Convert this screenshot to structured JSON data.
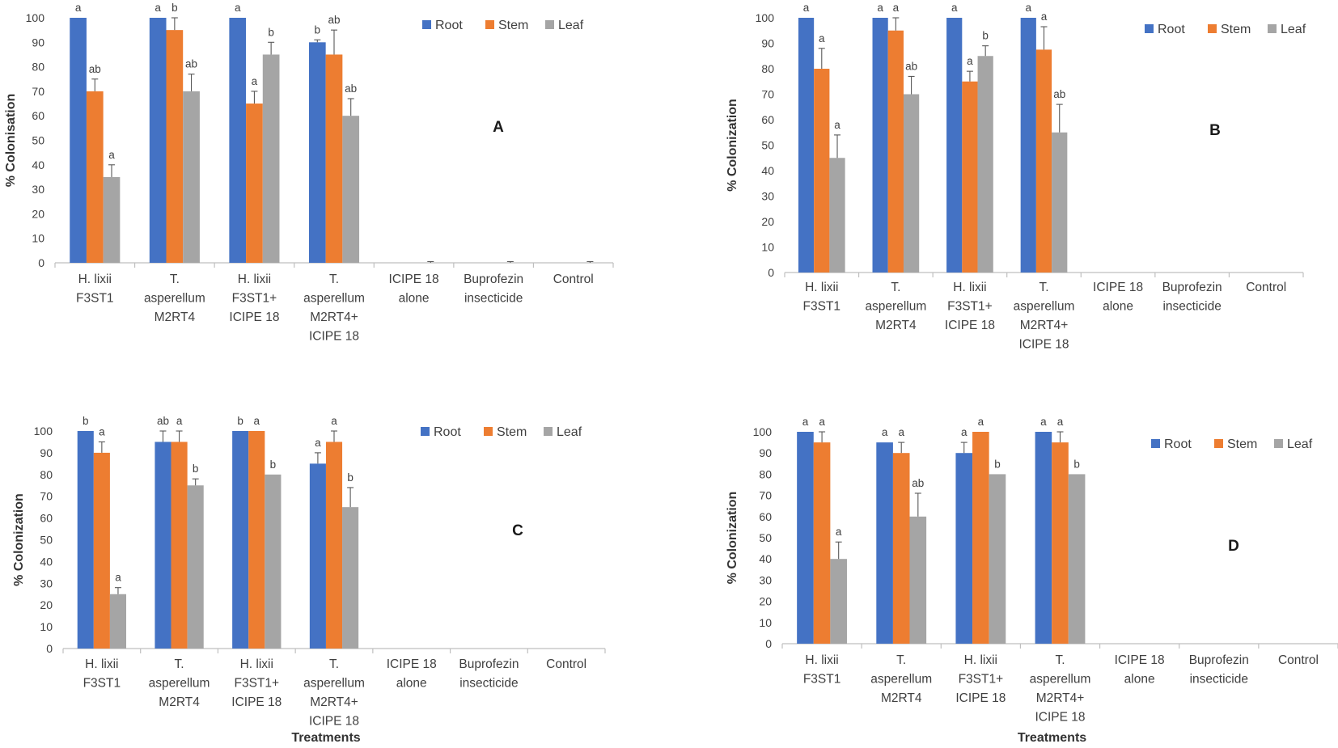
{
  "colors": {
    "root": "#4472C4",
    "stem": "#ED7D31",
    "leaf": "#A5A5A5",
    "axis": "#BFBFBF",
    "err": "#595959"
  },
  "chart_data": [
    {
      "panel": "A",
      "type": "bar",
      "ylabel": "% Colonisation",
      "xlabel": "",
      "ylim": [
        0,
        100
      ],
      "yticks": [
        0,
        10,
        20,
        30,
        40,
        50,
        60,
        70,
        80,
        90,
        100
      ],
      "legend": "top-right",
      "categories": [
        [
          "H. lixii",
          "F3ST1"
        ],
        [
          "T.",
          "asperellum",
          "M2RT4"
        ],
        [
          "H. lixii",
          "F3ST1+",
          "ICIPE 18"
        ],
        [
          "T.",
          "asperellum",
          "M2RT4+",
          "ICIPE 18"
        ],
        [
          "ICIPE 18",
          "alone"
        ],
        [
          "Buprofezin",
          "insecticide"
        ],
        [
          "Control"
        ]
      ],
      "series": [
        {
          "name": "Root",
          "values": [
            100,
            100,
            100,
            90,
            0,
            0,
            0
          ],
          "errors": [
            0,
            0,
            0,
            1,
            0,
            0,
            0
          ],
          "labels": [
            "a",
            "a",
            "a",
            "b",
            "",
            "",
            ""
          ]
        },
        {
          "name": "Stem",
          "values": [
            70,
            95,
            65,
            85,
            0,
            0,
            0
          ],
          "errors": [
            5,
            5,
            5,
            10,
            0,
            0,
            0
          ],
          "labels": [
            "ab",
            "b",
            "a",
            "ab",
            "",
            "",
            ""
          ]
        },
        {
          "name": "Leaf",
          "values": [
            35,
            70,
            85,
            60,
            0,
            0,
            0
          ],
          "errors": [
            5,
            7,
            5,
            7,
            0.5,
            0.5,
            0.5
          ],
          "labels": [
            "a",
            "ab",
            "b",
            "ab",
            "",
            "",
            ""
          ]
        }
      ]
    },
    {
      "panel": "B",
      "type": "bar",
      "ylabel": "% Colonization",
      "xlabel": "",
      "ylim": [
        0,
        100
      ],
      "yticks": [
        0,
        10,
        20,
        30,
        40,
        50,
        60,
        70,
        80,
        90,
        100
      ],
      "legend": "top-right",
      "categories": [
        [
          "H. lixii",
          "F3ST1"
        ],
        [
          "T.",
          "asperellum",
          "M2RT4"
        ],
        [
          "H. lixii",
          "F3ST1+",
          "ICIPE 18"
        ],
        [
          "T.",
          "asperellum",
          "M2RT4+",
          "ICIPE 18"
        ],
        [
          "ICIPE 18",
          "alone"
        ],
        [
          "Buprofezin",
          "insecticide"
        ],
        [
          "Control"
        ]
      ],
      "series": [
        {
          "name": "Root",
          "values": [
            100,
            100,
            100,
            100,
            0,
            0,
            0
          ],
          "errors": [
            0,
            0,
            0,
            0,
            0,
            0,
            0
          ],
          "labels": [
            "a",
            "a",
            "a",
            "a",
            "",
            "",
            ""
          ]
        },
        {
          "name": "Stem",
          "values": [
            80,
            95,
            75,
            87.5,
            0,
            0,
            0
          ],
          "errors": [
            8,
            5,
            4,
            9,
            0,
            0,
            0
          ],
          "labels": [
            "a",
            "a",
            "a",
            "a",
            "",
            "",
            ""
          ]
        },
        {
          "name": "Leaf",
          "values": [
            45,
            70,
            85,
            55,
            0,
            0,
            0
          ],
          "errors": [
            9,
            7,
            4,
            11,
            0,
            0,
            0
          ],
          "labels": [
            "a",
            "ab",
            "b",
            "ab",
            "",
            "",
            ""
          ]
        }
      ]
    },
    {
      "panel": "C",
      "type": "bar",
      "ylabel": "% Colonization",
      "xlabel": "Treatments",
      "ylim": [
        0,
        100
      ],
      "yticks": [
        0,
        10,
        20,
        30,
        40,
        50,
        60,
        70,
        80,
        90,
        100
      ],
      "legend": "top-right",
      "categories": [
        [
          "H.  lixii",
          "F3ST1"
        ],
        [
          "T.",
          "asperellum",
          "M2RT4"
        ],
        [
          "H. lixii",
          "F3ST1+",
          "ICIPE 18"
        ],
        [
          "T.",
          "asperellum",
          "M2RT4+",
          "ICIPE 18"
        ],
        [
          "ICIPE 18",
          "alone"
        ],
        [
          "Buprofezin",
          "insecticide"
        ],
        [
          "Control"
        ]
      ],
      "series": [
        {
          "name": "Root",
          "values": [
            100,
            95,
            100,
            85,
            0,
            0,
            0
          ],
          "errors": [
            0,
            5,
            0,
            5,
            0,
            0,
            0
          ],
          "labels": [
            "b",
            "ab",
            "b",
            "a",
            "",
            "",
            ""
          ]
        },
        {
          "name": "Stem",
          "values": [
            90,
            95,
            100,
            95,
            0,
            0,
            0
          ],
          "errors": [
            5,
            5,
            0,
            5,
            0,
            0,
            0
          ],
          "labels": [
            "a",
            "a",
            "a",
            "a",
            "",
            "",
            ""
          ]
        },
        {
          "name": "Leaf",
          "values": [
            25,
            75,
            80,
            65,
            0,
            0,
            0
          ],
          "errors": [
            3,
            3,
            0,
            9,
            0,
            0,
            0
          ],
          "labels": [
            "a",
            "b",
            "b",
            "b",
            "",
            "",
            ""
          ]
        }
      ]
    },
    {
      "panel": "D",
      "type": "bar",
      "ylabel": "% Colonization",
      "xlabel": "Treatments",
      "ylim": [
        0,
        100
      ],
      "yticks": [
        0,
        10,
        20,
        30,
        40,
        50,
        60,
        70,
        80,
        90,
        100
      ],
      "legend": "top-right",
      "categories": [
        [
          "H.  lixii",
          "F3ST1"
        ],
        [
          "T.",
          "asperellum",
          "M2RT4"
        ],
        [
          "H. lixii",
          "F3ST1+",
          "ICIPE 18"
        ],
        [
          "T.",
          "asperellum",
          "M2RT4+",
          "ICIPE 18"
        ],
        [
          "ICIPE 18",
          "alone"
        ],
        [
          "Buprofezin",
          "insecticide"
        ],
        [
          "Control"
        ]
      ],
      "series": [
        {
          "name": "Root",
          "values": [
            100,
            95,
            90,
            100,
            0,
            0,
            0
          ],
          "errors": [
            0,
            0,
            5,
            0,
            0,
            0,
            0
          ],
          "labels": [
            "a",
            "a",
            "a",
            "a",
            "",
            "",
            ""
          ]
        },
        {
          "name": "Stem",
          "values": [
            95,
            90,
            100,
            95,
            0,
            0,
            0
          ],
          "errors": [
            5,
            5,
            0,
            5,
            0,
            0,
            0
          ],
          "labels": [
            "a",
            "a",
            "a",
            "a",
            "",
            "",
            ""
          ]
        },
        {
          "name": "Leaf",
          "values": [
            40,
            60,
            80,
            80,
            0,
            0,
            0
          ],
          "errors": [
            8,
            11,
            0,
            0,
            0,
            0,
            0
          ],
          "labels": [
            "a",
            "ab",
            "b",
            "b",
            "",
            "",
            ""
          ]
        }
      ]
    }
  ]
}
